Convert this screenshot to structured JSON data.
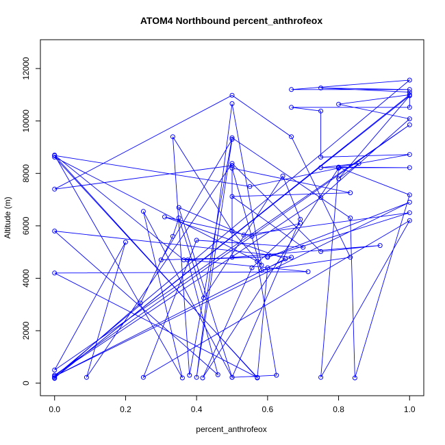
{
  "chart_data": {
    "type": "line",
    "title": "ATOM4 Northbound percent_anthrofeox",
    "xlabel": "percent_anthrofeox",
    "ylabel": "Altitude (m)",
    "xlim": [
      -0.04,
      1.04
    ],
    "ylim": [
      -480,
      13100
    ],
    "x_ticks": [
      0.0,
      0.2,
      0.4,
      0.6,
      0.8,
      1.0
    ],
    "x_tick_labels": [
      "0.0",
      "0.2",
      "0.4",
      "0.6",
      "0.8",
      "1.0"
    ],
    "y_ticks": [
      0,
      2000,
      4000,
      6000,
      8000,
      10000,
      12000
    ],
    "y_tick_labels": [
      "0",
      "2000",
      "4000",
      "6000",
      "8000",
      "10000",
      "12000"
    ],
    "grid": false,
    "series": [
      {
        "color": "#0000ff",
        "marker": "open-circle",
        "points": [
          [
            0.0,
            180
          ],
          [
            0.0,
            250
          ],
          [
            1.0,
            11560
          ],
          [
            0.667,
            11200
          ],
          [
            1.0,
            11200
          ],
          [
            0.75,
            11260
          ],
          [
            1.0,
            11100
          ],
          [
            1.0,
            10520
          ],
          [
            0.667,
            10520
          ],
          [
            0.75,
            10380
          ],
          [
            0.75,
            8620
          ],
          [
            1.0,
            8720
          ],
          [
            0.8,
            8240
          ],
          [
            1.0,
            8220
          ],
          [
            0.75,
            8220
          ],
          [
            0.857,
            8380
          ],
          [
            0.8,
            7800
          ],
          [
            1.0,
            10960
          ],
          [
            0.0,
            200
          ],
          [
            1.0,
            11000
          ],
          [
            0.8,
            10640
          ],
          [
            1.0,
            10080
          ],
          [
            0.75,
            7080
          ],
          [
            0.0,
            300
          ],
          [
            1.0,
            9850
          ],
          [
            0.0,
            500
          ],
          [
            0.2,
            5380
          ],
          [
            0.09,
            220
          ],
          [
            0.5,
            8380
          ],
          [
            0.75,
            5020
          ],
          [
            0.917,
            5250
          ],
          [
            0.5,
            4800
          ],
          [
            0.5,
            8300
          ],
          [
            0.0,
            7400
          ],
          [
            0.5,
            10980
          ],
          [
            0.667,
            9400
          ],
          [
            0.833,
            4800
          ],
          [
            0.583,
            4300
          ],
          [
            0.5,
            8200
          ],
          [
            0.833,
            7260
          ],
          [
            0.5,
            7120
          ],
          [
            0.7,
            5180
          ],
          [
            0.4,
            5450
          ],
          [
            0.25,
            220
          ],
          [
            1.0,
            6200
          ],
          [
            0.75,
            220
          ],
          [
            0.8,
            8230
          ],
          [
            1.0,
            7180
          ],
          [
            0.846,
            200
          ],
          [
            0.833,
            6300
          ],
          [
            0.5,
            9360
          ],
          [
            0.38,
            300
          ],
          [
            0.333,
            9400
          ],
          [
            0.5,
            5800
          ],
          [
            0.583,
            4500
          ],
          [
            0.5,
            10660
          ],
          [
            0.4,
            220
          ],
          [
            0.5,
            9300
          ],
          [
            0.3,
            4700
          ],
          [
            0.6,
            4820
          ],
          [
            0.364,
            4700
          ],
          [
            0.0,
            8700
          ],
          [
            0.36,
            200
          ],
          [
            0.25,
            6550
          ],
          [
            0.5,
            220
          ],
          [
            0.625,
            300
          ],
          [
            0.571,
            4650
          ],
          [
            0.0,
            8620
          ],
          [
            0.571,
            220
          ],
          [
            0.0,
            4200
          ],
          [
            0.714,
            4250
          ],
          [
            0.375,
            4700
          ],
          [
            0.46,
            320
          ],
          [
            0.0,
            5800
          ],
          [
            0.667,
            4800
          ],
          [
            0.6,
            4400
          ],
          [
            0.571,
            200
          ],
          [
            0.0,
            8680
          ],
          [
            0.55,
            7500
          ],
          [
            0.8,
            8200
          ],
          [
            0.417,
            200
          ],
          [
            0.556,
            4400
          ],
          [
            0.692,
            6100
          ],
          [
            0.556,
            5600
          ],
          [
            0.31,
            6340
          ],
          [
            0.65,
            4740
          ],
          [
            0.0,
            260
          ],
          [
            1.0,
            6900
          ],
          [
            0.6,
            4800
          ],
          [
            1.0,
            6500
          ],
          [
            0.533,
            5650
          ],
          [
            0.35,
            6700
          ],
          [
            0.5,
            220
          ],
          [
            0.692,
            6250
          ],
          [
            0.643,
            7900
          ],
          [
            0.42,
            3250
          ],
          [
            0.35,
            6300
          ],
          [
            0.333,
            5600
          ],
          [
            0.242,
            3050
          ],
          [
            0.0,
            200
          ]
        ]
      }
    ]
  }
}
